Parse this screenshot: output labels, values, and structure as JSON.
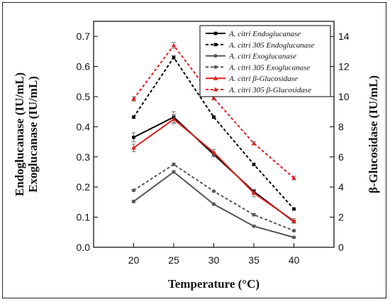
{
  "chart_data": {
    "type": "line",
    "x": [
      20,
      25,
      30,
      35,
      40
    ],
    "xlabel": "Temperature (°C)",
    "ylabel_left": [
      "Endoglucanase (IU/mL)",
      "Exoglucanase (IU/mL)"
    ],
    "ylabel_right": "β-Glucosidase (IU/mL)",
    "xlim": [
      15,
      45
    ],
    "ylim_left": [
      0,
      0.75
    ],
    "ylim_right": [
      0,
      15
    ],
    "xticks": [
      20,
      25,
      30,
      35,
      40
    ],
    "yticks_left": [
      "0.0",
      "0.1",
      "0.2",
      "0.3",
      "0.4",
      "0.5",
      "0.6",
      "0.7"
    ],
    "yticks_right": [
      "0",
      "2",
      "4",
      "6",
      "8",
      "10",
      "12",
      "14"
    ],
    "grid": false,
    "legend_position": "top-right",
    "series": [
      {
        "name": "A. citri Endoglucanase",
        "axis": "left",
        "color": "#000000",
        "dash": "solid",
        "marker": "square",
        "values": [
          0.365,
          0.432,
          0.308,
          0.185,
          0.085
        ],
        "errors": [
          0.015,
          0.018,
          0.008,
          0.005,
          0.004
        ]
      },
      {
        "name": "A. citri 305 Endoglucanase",
        "axis": "left",
        "color": "#000000",
        "dash": "dashed",
        "marker": "square",
        "values": [
          0.432,
          0.63,
          0.432,
          0.275,
          0.127
        ],
        "errors": [
          0.004,
          0.006,
          0.004,
          0.004,
          0.003
        ]
      },
      {
        "name": "A. citri Exoglucanase",
        "axis": "left",
        "color": "#555555",
        "dash": "solid",
        "marker": "circle",
        "values": [
          0.152,
          0.25,
          0.143,
          0.07,
          0.033
        ],
        "errors": [
          0.004,
          0.004,
          0.003,
          0.003,
          0.003
        ]
      },
      {
        "name": "A. citri 305 Exoglucanase",
        "axis": "left",
        "color": "#555555",
        "dash": "dashed",
        "marker": "circle",
        "values": [
          0.189,
          0.275,
          0.186,
          0.108,
          0.055
        ],
        "errors": [
          0.003,
          0.004,
          0.003,
          0.004,
          0.003
        ]
      },
      {
        "name": "A. citri β-Glucosidase",
        "axis": "right",
        "color": "#e02020",
        "dash": "solid",
        "marker": "triangle",
        "values": [
          6.6,
          8.5,
          6.3,
          3.6,
          1.75
        ],
        "errors": [
          0.25,
          0.3,
          0.2,
          0.25,
          0.15
        ]
      },
      {
        "name": "A. citri 305 β-Glucosidase",
        "axis": "right",
        "color": "#e02020",
        "dash": "dashed",
        "marker": "triangle",
        "values": [
          9.85,
          13.4,
          9.9,
          6.9,
          4.6
        ],
        "errors": [
          0.15,
          0.2,
          0.12,
          0.1,
          0.12
        ]
      }
    ]
  }
}
